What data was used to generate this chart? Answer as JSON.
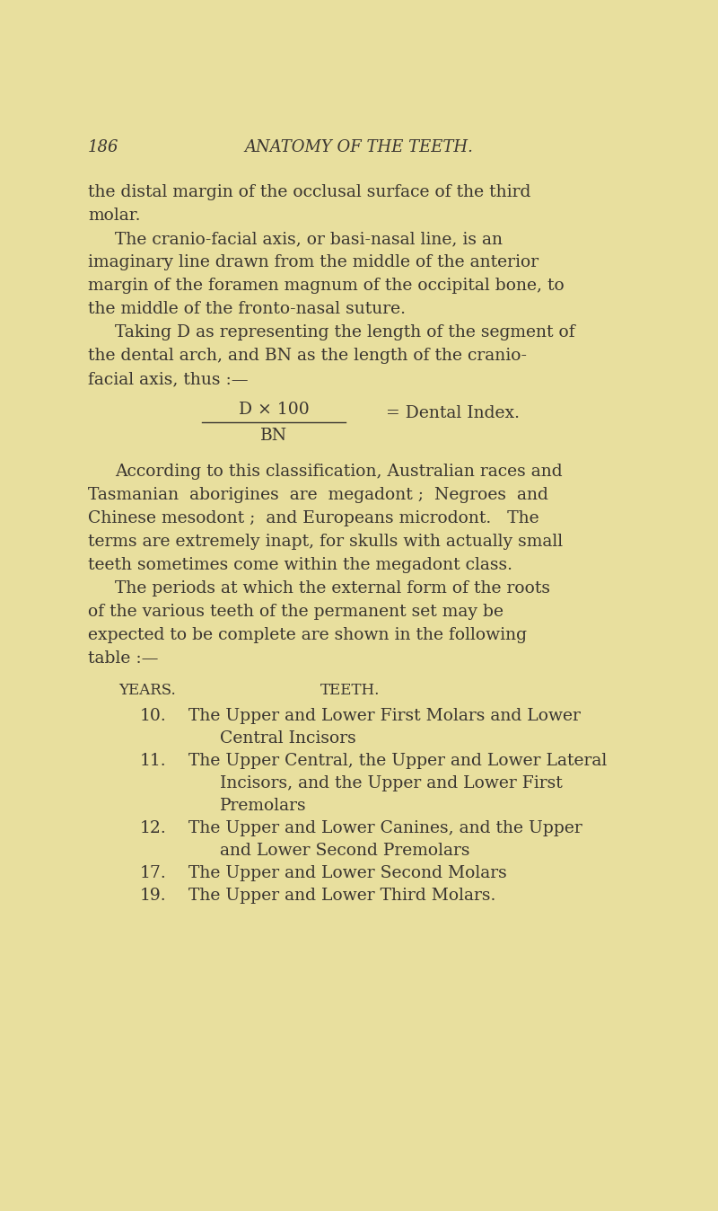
{
  "background_color": "#e8df9e",
  "text_color": "#3a3530",
  "page_number": "186",
  "header": "ANATOMY OF THE TEETH.",
  "para1": [
    [
      false,
      "the distal margin of the occlusal surface of the third"
    ],
    [
      false,
      "molar."
    ],
    [
      true,
      "The cranio-facial axis, or basi-nasal line, is an"
    ],
    [
      false,
      "imaginary line drawn from the middle of the anterior"
    ],
    [
      false,
      "margin of the foramen magnum of the occipital bone, to"
    ],
    [
      false,
      "the middle of the fronto-nasal suture."
    ],
    [
      true,
      "Taking D as representing the length of the segment of"
    ],
    [
      false,
      "the dental arch, and BN as the length of the cranio-"
    ],
    [
      false,
      "facial axis, thus :—"
    ]
  ],
  "formula_numerator": "D × 100",
  "formula_denominator": "BN",
  "formula_equals": "= Dental Index.",
  "para2": [
    [
      true,
      "According to this classification, Australian races and"
    ],
    [
      false,
      "Tasmanian  aborigines  are  megadont ;  Negroes  and"
    ],
    [
      false,
      "Chinese mesodont ;  and Europeans microdont.   The"
    ],
    [
      false,
      "terms are extremely inapt, for skulls with actually small"
    ],
    [
      false,
      "teeth sometimes come within the megadont class."
    ],
    [
      true,
      "The periods at which the external form of the roots"
    ],
    [
      false,
      "of the various teeth of the permanent set may be"
    ],
    [
      false,
      "expected to be complete are shown in the following"
    ],
    [
      false,
      "table :—"
    ]
  ],
  "table_header_years": "YEARS.",
  "table_header_teeth": "TEETH.",
  "table_rows": [
    {
      "year": "10.",
      "lines": [
        "The Upper and Lower First Molars and Lower",
        "Central Incisors"
      ]
    },
    {
      "year": "11.",
      "lines": [
        "The Upper Central, the Upper and Lower Lateral",
        "Incisors, and the Upper and Lower First",
        "Premolars"
      ]
    },
    {
      "year": "12.",
      "lines": [
        "The Upper and Lower Canines, and the Upper",
        "and Lower Second Premolars"
      ]
    },
    {
      "year": "17.",
      "lines": [
        "The Upper and Lower Second Molars"
      ]
    },
    {
      "year": "19.",
      "lines": [
        "The Upper and Lower Third Molars."
      ]
    }
  ]
}
